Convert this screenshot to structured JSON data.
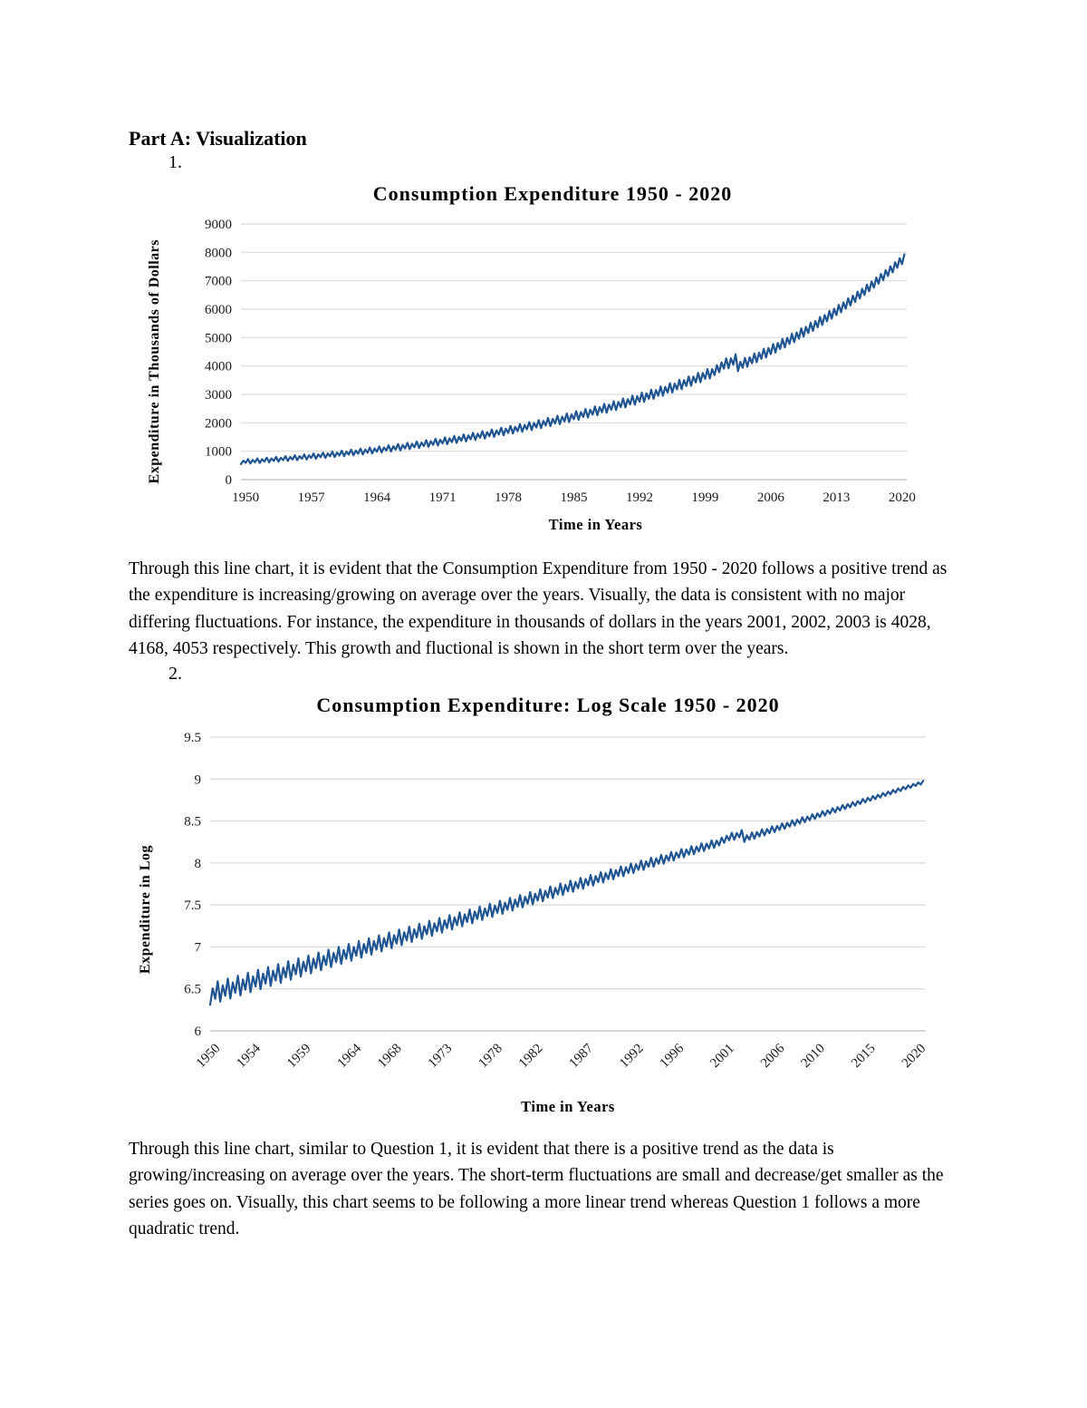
{
  "page": {
    "heading": "Part A: Visualization",
    "item1_number": "1.",
    "item2_number": "2.",
    "paragraph1": "Through this line chart, it is evident that the Consumption Expenditure from 1950 - 2020 follows a positive trend as the expenditure is increasing/growing on average over the years. Visually, the data is consistent with no major differing fluctuations. For instance, the expenditure in thousands of dollars in the years 2001, 2002, 2003 is 4028, 4168, 4053 respectively. This growth and fluctional is shown in the short term over the years.",
    "paragraph2": "Through this line chart, similar to Question 1, it is evident that there is a positive trend as the data is growing/increasing on average over the years. The short-term fluctuations are small and decrease/get smaller as the series goes on. Visually, this chart seems to be following a more linear trend whereas Question 1 follows a more quadratic trend."
  },
  "chart_data": [
    {
      "type": "line",
      "title": "Consumption Expenditure 1950 - 2020",
      "xlabel": "Time in Years",
      "ylabel": "Expenditure in Thousands of Dollars",
      "x_tick_labels": [
        1950,
        1957,
        1964,
        1971,
        1978,
        1985,
        1992,
        1999,
        2006,
        2013,
        2020
      ],
      "y_ticks": [
        0,
        1000,
        2000,
        3000,
        4000,
        5000,
        6000,
        7000,
        8000,
        9000
      ],
      "ylim": [
        0,
        9000
      ],
      "xlim": [
        1950,
        2020
      ],
      "years_start": 1950,
      "annual_values": [
        633,
        656,
        680,
        705,
        731,
        757,
        785,
        814,
        843,
        874,
        906,
        939,
        973,
        1009,
        1046,
        1084,
        1123,
        1164,
        1207,
        1251,
        1296,
        1344,
        1393,
        1444,
        1496,
        1551,
        1607,
        1666,
        1727,
        1790,
        1855,
        1923,
        1993,
        2065,
        2141,
        2219,
        2300,
        2383,
        2470,
        2560,
        2653,
        2750,
        2850,
        2954,
        3062,
        3173,
        3289,
        3409,
        3533,
        3661,
        3795,
        4028,
        4168,
        4053,
        4210,
        4372,
        4540,
        4715,
        4896,
        5084,
        5280,
        5483,
        5694,
        5913,
        6140,
        6376,
        6621,
        6876,
        7140,
        7415,
        7700
      ],
      "frequency": "quarterly with seasonal sawtooth",
      "seasonal_pattern": [
        -1,
        0.4,
        -0.5,
        1
      ],
      "amp_start": 0.14,
      "amp_end": 0.03,
      "log": false,
      "line_color": "#1f5592",
      "grid_color": "#d9d9d9",
      "axis_color": "#bfbfbf",
      "grid": "horizontal only",
      "legend": "none"
    },
    {
      "type": "line",
      "title": "Consumption Expenditure: Log Scale 1950 - 2020",
      "xlabel": "Time in Years",
      "ylabel": "Expenditure in Log",
      "x_tick_labels": [
        1950,
        1954,
        1959,
        1964,
        1968,
        1973,
        1978,
        1982,
        1987,
        1992,
        1996,
        2001,
        2006,
        2010,
        2015,
        2020
      ],
      "y_ticks": [
        6,
        6.5,
        7,
        7.5,
        8,
        8.5,
        9,
        9.5
      ],
      "ylim": [
        6,
        9.5
      ],
      "xlim": [
        1950,
        2020
      ],
      "years_start": 1950,
      "values_source": "natural log of chart 1 annual values (approx 6.45 in 1950 rising to 8.95 in 2020)",
      "frequency": "quarterly with seasonal sawtooth, amplitude shrinking over time",
      "seasonal_pattern": [
        -1,
        0.4,
        -0.5,
        1
      ],
      "amp_start": 0.14,
      "amp_end": 0.03,
      "log": true,
      "line_color": "#1f5592",
      "grid_color": "#d9d9d9",
      "axis_color": "#bfbfbf",
      "grid": "horizontal only",
      "legend": "none",
      "x_tick_label_rotation_deg": -45
    }
  ]
}
